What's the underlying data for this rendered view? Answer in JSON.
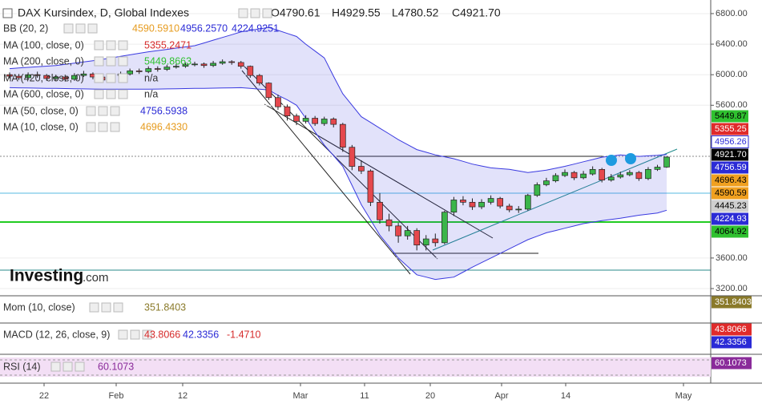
{
  "header": {
    "title": "DAX Kursindex, D, Global Indexes",
    "ohlc": [
      "O4790.61",
      "H4929.55",
      "L4780.52",
      "C4921.70"
    ]
  },
  "legend": [
    {
      "label": "BB (20, 2)",
      "values": [
        {
          "text": "4590.5910",
          "color": "#e69b1e"
        },
        {
          "text": "4956.2570",
          "color": "#2b2bd6"
        },
        {
          "text": "4224.9251",
          "color": "#2b2bd6"
        }
      ]
    },
    {
      "label": "MA (100, close, 0)",
      "values": [
        {
          "text": "5355.2471",
          "color": "#d62b2b"
        }
      ]
    },
    {
      "label": "MA (200, close, 0)",
      "values": [
        {
          "text": "5449.8663",
          "color": "#2fc12f"
        }
      ]
    },
    {
      "label": "MA (420, close, 0)",
      "values": [
        {
          "text": "n/a",
          "color": "#333333"
        }
      ]
    },
    {
      "label": "MA (600, close, 0)",
      "values": [
        {
          "text": "n/a",
          "color": "#333333"
        }
      ]
    },
    {
      "label": "MA (50, close, 0)",
      "values": [
        {
          "text": "4756.5938",
          "color": "#2b2bd6"
        }
      ]
    },
    {
      "label": "MA (10, close, 0)",
      "values": [
        {
          "text": "4696.4330",
          "color": "#e69b1e"
        }
      ]
    }
  ],
  "logo": "Investing",
  "logo_suffix": ".com",
  "price_badges": [
    {
      "text": "5449.87",
      "bg": "#2fc12f",
      "fg": "#000000"
    },
    {
      "text": "5355.25",
      "bg": "#e02b2b",
      "fg": "#ffffff"
    },
    {
      "text": "4956.26",
      "bg": "#ffffff",
      "fg": "#2b2bd6"
    },
    {
      "text": "4921.70",
      "bg": "#000000",
      "fg": "#ffffff"
    },
    {
      "text": "4756.59",
      "bg": "#2b2bd6",
      "fg": "#ffffff"
    },
    {
      "text": "4696.43",
      "bg": "#f0a020",
      "fg": "#000000"
    },
    {
      "text": "4590.59",
      "bg": "#f0a020",
      "fg": "#000000"
    },
    {
      "text": "4445.23",
      "bg": "#cfcfcf",
      "fg": "#000000"
    },
    {
      "text": "4224.93",
      "bg": "#2b2bd6",
      "fg": "#ffffff"
    },
    {
      "text": "4064.92",
      "bg": "#2fc12f",
      "fg": "#000000"
    }
  ],
  "panes": [
    {
      "label": "Mom (10, close)",
      "values": [
        {
          "text": "351.8403",
          "color": "#8a7a2a"
        }
      ],
      "badges": [
        {
          "text": "351.8403",
          "bg": "#8a7a2a",
          "fg": "#ffffff"
        }
      ]
    },
    {
      "label": "MACD (12, 26, close, 9)",
      "values": [
        {
          "text": "43.8066",
          "color": "#d62b2b"
        },
        {
          "text": "42.3356",
          "color": "#2b2bd6"
        },
        {
          "text": "-1.4710",
          "color": "#d62b2b"
        }
      ],
      "badges": [
        {
          "text": "43.8066",
          "bg": "#e02b2b",
          "fg": "#ffffff"
        },
        {
          "text": "42.3356",
          "bg": "#2b2bd6",
          "fg": "#ffffff"
        }
      ]
    },
    {
      "label": "RSI (14)",
      "values": [
        {
          "text": "60.1073",
          "color": "#8a2b9a"
        }
      ],
      "badges": [
        {
          "text": "60.1073",
          "bg": "#8a2b9a",
          "fg": "#ffffff"
        }
      ]
    }
  ],
  "x_labels": [
    "22",
    "Feb",
    "12",
    "Mar",
    "11",
    "20",
    "Apr",
    "14",
    "May"
  ],
  "chart_data": {
    "type": "candlestick",
    "ylim": [
      3116,
      6978
    ],
    "yticks": [
      {
        "value": 6800,
        "label": "6800.00"
      },
      {
        "value": 6400,
        "label": "6400.00"
      },
      {
        "value": 6000,
        "label": "6000.00"
      },
      {
        "value": 5600,
        "label": "5600.00"
      },
      {
        "value": 3600,
        "label": "3600.00"
      },
      {
        "value": 3200,
        "label": "3200.00"
      }
    ],
    "up_color": "#3bb54a",
    "down_color": "#e5484d",
    "band_color": "#3a3ae0",
    "open": [
      6000,
      5980,
      5960,
      6000,
      5990,
      5950,
      5970,
      5940,
      5990,
      6010,
      5970,
      5930,
      5990,
      6010,
      6050,
      6040,
      6080,
      6070,
      6100,
      6110,
      6130,
      6140,
      6120,
      6150,
      6170,
      6160,
      6110,
      5990,
      5890,
      5700,
      5580,
      5460,
      5390,
      5430,
      5360,
      5420,
      5350,
      5050,
      4800,
      4740,
      4330,
      4100,
      4020,
      3890,
      3960,
      3770,
      3850,
      3800,
      4200,
      4360,
      4330,
      4270,
      4330,
      4380,
      4280,
      4230,
      4240,
      4420,
      4560,
      4610,
      4680,
      4720,
      4650,
      4700,
      4760,
      4620,
      4660,
      4690,
      4720,
      4640,
      4760,
      4790.61
    ],
    "high": [
      6030,
      6010,
      6030,
      6040,
      6010,
      6000,
      6000,
      6020,
      6050,
      6030,
      5990,
      6010,
      6040,
      6080,
      6080,
      6110,
      6110,
      6130,
      6140,
      6160,
      6170,
      6160,
      6180,
      6200,
      6190,
      6180,
      6120,
      6010,
      5900,
      5740,
      5610,
      5490,
      5470,
      5460,
      5450,
      5440,
      5370,
      5080,
      4880,
      4760,
      4450,
      4180,
      4060,
      4020,
      3990,
      3900,
      3920,
      4220,
      4400,
      4410,
      4380,
      4370,
      4420,
      4400,
      4310,
      4280,
      4440,
      4590,
      4650,
      4710,
      4760,
      4740,
      4740,
      4800,
      4780,
      4700,
      4730,
      4750,
      4740,
      4790,
      4820,
      4929.55
    ],
    "low": [
      5950,
      5930,
      5940,
      5960,
      5920,
      5920,
      5910,
      5920,
      5970,
      5940,
      5900,
      5910,
      5960,
      5990,
      6010,
      6020,
      6040,
      6050,
      6080,
      6090,
      6110,
      6090,
      6100,
      6130,
      6130,
      6080,
      5960,
      5860,
      5670,
      5540,
      5400,
      5340,
      5360,
      5330,
      5330,
      5310,
      4990,
      4750,
      4700,
      4280,
      4050,
      3950,
      3800,
      3840,
      3700,
      3700,
      3750,
      3780,
      4150,
      4290,
      4230,
      4240,
      4300,
      4250,
      4200,
      4190,
      4220,
      4400,
      4540,
      4590,
      4660,
      4620,
      4630,
      4680,
      4590,
      4600,
      4640,
      4670,
      4610,
      4620,
      4740,
      4780.52
    ],
    "close": [
      5980,
      5960,
      6000,
      5990,
      5950,
      5970,
      5940,
      5990,
      6010,
      5970,
      5930,
      5990,
      6010,
      6050,
      6040,
      6080,
      6070,
      6100,
      6110,
      6130,
      6140,
      6120,
      6150,
      6170,
      6160,
      6110,
      5990,
      5890,
      5700,
      5580,
      5460,
      5390,
      5430,
      5360,
      5420,
      5350,
      5050,
      4800,
      4740,
      4330,
      4100,
      4020,
      3890,
      3960,
      3770,
      3850,
      3800,
      4200,
      4360,
      4330,
      4270,
      4330,
      4380,
      4280,
      4230,
      4240,
      4420,
      4560,
      4610,
      4680,
      4720,
      4650,
      4700,
      4760,
      4620,
      4660,
      4690,
      4720,
      4640,
      4760,
      4790,
      4921.7
    ],
    "bb_upper": [
      6080,
      6088,
      6096,
      6104,
      6112,
      6120,
      6136,
      6152,
      6168,
      6184,
      6200,
      6220,
      6240,
      6260,
      6280,
      6300,
      6316,
      6332,
      6348,
      6364,
      6380,
      6416,
      6452,
      6488,
      6524,
      6560,
      6580,
      6600,
      6620,
      6580,
      6540,
      6500,
      6400,
      6310,
      6220,
      5980,
      5750,
      5600,
      5450,
      5375,
      5300,
      5225,
      5150,
      5085,
      5020,
      4985,
      4950,
      4925,
      4900,
      4865,
      4830,
      4805,
      4780,
      4770,
      4760,
      4740,
      4720,
      4735,
      4750,
      4775,
      4800,
      4830,
      4860,
      4890,
      4920,
      4935,
      4950,
      4940,
      4930,
      4938,
      4945,
      4956.26
    ],
    "bb_lower": [
      5830,
      5828,
      5826,
      5824,
      5822,
      5820,
      5818,
      5816,
      5814,
      5812,
      5810,
      5810,
      5810,
      5810,
      5810,
      5810,
      5812,
      5814,
      5816,
      5818,
      5820,
      5822,
      5824,
      5826,
      5828,
      5830,
      5820,
      5810,
      5800,
      5730,
      5670,
      5600,
      5430,
      5250,
      5080,
      4940,
      4800,
      4550,
      4300,
      4100,
      3900,
      3750,
      3600,
      3490,
      3380,
      3350,
      3320,
      3335,
      3350,
      3415,
      3480,
      3540,
      3600,
      3660,
      3720,
      3780,
      3840,
      3885,
      3930,
      3960,
      3990,
      4020,
      4050,
      4070,
      4090,
      4105,
      4120,
      4140,
      4160,
      4175,
      4190,
      4224.93
    ]
  }
}
